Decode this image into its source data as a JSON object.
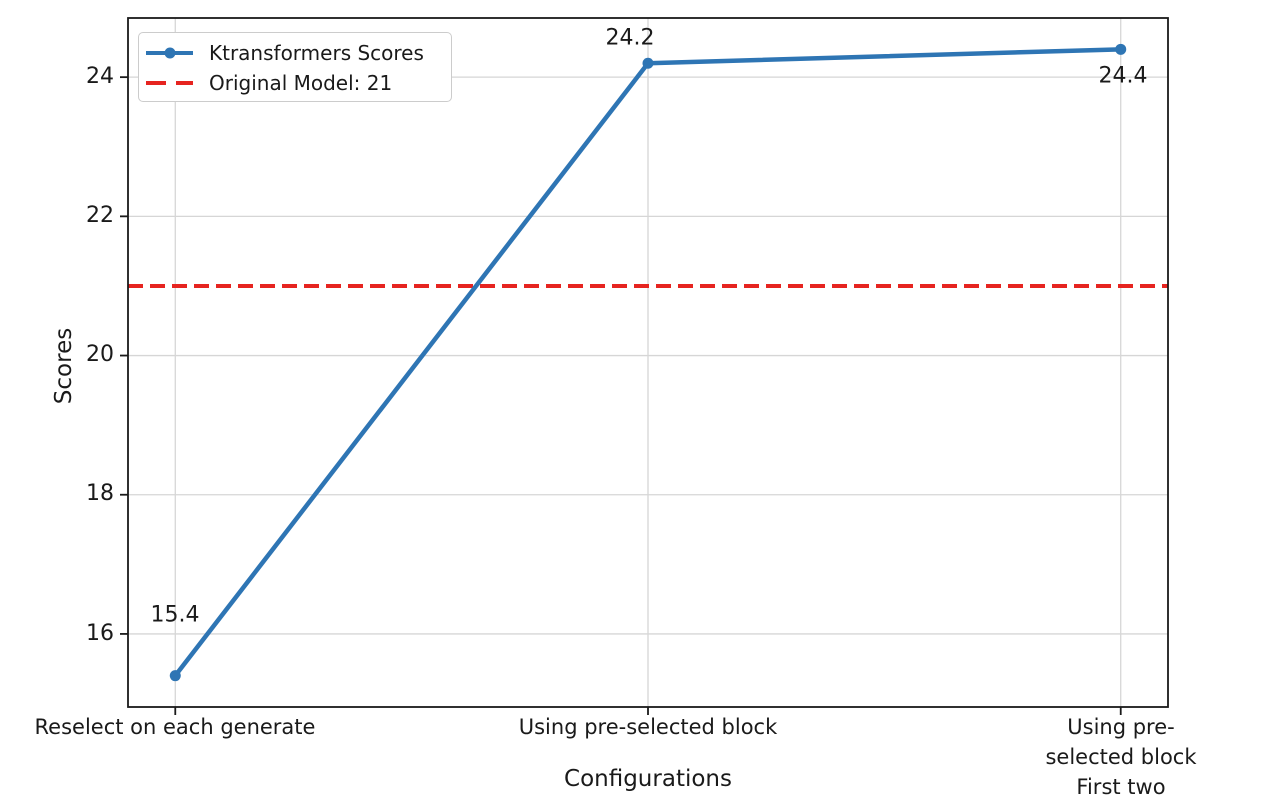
{
  "chart_data": {
    "type": "line",
    "title": "",
    "xlabel": "Configurations",
    "ylabel": "Scores",
    "categories": [
      "Reselect on each generate",
      "Using pre-selected block",
      "Using pre-selected block\nFirst two layers dense"
    ],
    "series": [
      {
        "name": "Ktransformers Scores",
        "values": [
          15.4,
          24.2,
          24.4
        ],
        "color": "#2e75b4",
        "line_style": "solid",
        "marker": "circle"
      }
    ],
    "reference_line": {
      "label": "Original Model: 21",
      "value": 21,
      "color": "#e62420",
      "line_style": "dashed"
    },
    "annotations": [
      "15.4",
      "24.2",
      "24.4"
    ],
    "yticks": [
      16,
      18,
      20,
      22,
      24
    ],
    "ylim": [
      14.95,
      24.85
    ],
    "grid": true,
    "legend_position": "upper-left",
    "colors": {
      "line": "#2e75b4",
      "reference": "#e62420",
      "grid": "#d6d6d6",
      "spine": "#1a1a1a",
      "background": "#ffffff"
    }
  }
}
